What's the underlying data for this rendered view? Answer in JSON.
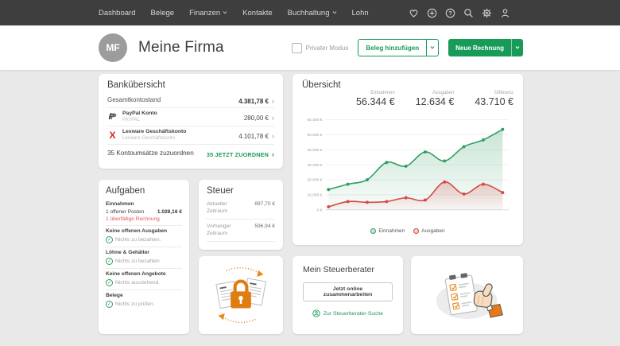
{
  "colors": {
    "accent_green": "#189b58",
    "alert_red": "#e2555c",
    "chart_green": "#2f9e62",
    "chart_red": "#d64744",
    "nav_background": "#3e3e3e"
  },
  "icons": {
    "chevron_right": "›",
    "check": "✓",
    "nav_icon_names": [
      "heart-icon",
      "plus-circle-icon",
      "help-icon",
      "search-icon",
      "settings-icon",
      "user-icon"
    ]
  },
  "nav": {
    "items": [
      {
        "label": "Dashboard",
        "has_dropdown": false
      },
      {
        "label": "Belege",
        "has_dropdown": false
      },
      {
        "label": "Finanzen",
        "has_dropdown": true
      },
      {
        "label": "Kontakte",
        "has_dropdown": false
      },
      {
        "label": "Buchhaltung",
        "has_dropdown": true
      },
      {
        "label": "Lohn",
        "has_dropdown": false
      }
    ]
  },
  "header": {
    "avatar_initials": "MF",
    "company_name": "Meine Firma",
    "private_mode_label": "Privater Modus",
    "private_mode_checked": false,
    "add_receipt_button": "Beleg hinzufügen",
    "new_invoice_button": "Neue Rechnung"
  },
  "bank_overview": {
    "title": "Bankübersicht",
    "total_label": "Gesamtkontostand",
    "total_value": "4.381,78 €",
    "accounts": [
      {
        "icon": "paypal-icon",
        "name": "PayPal Konto",
        "subtitle": "PAYPAL",
        "value": "280,00 €"
      },
      {
        "icon": "lexware-icon",
        "name": "Lexware Geschäftskonto",
        "subtitle": "Lexware Geschäftskonto",
        "value": "4.101,78 €"
      }
    ],
    "pending_label": "35 Kontoumsätze zuzuordnen",
    "pending_action": "35 JETZT ZUORDNEN"
  },
  "overview": {
    "title": "Übersicht",
    "stats": [
      {
        "label": "Einnahmen",
        "value": "56.344 €"
      },
      {
        "label": "Ausgaben",
        "value": "12.634 €"
      },
      {
        "label": "Differenz",
        "value": "43.710 €"
      }
    ]
  },
  "chart_data": {
    "type": "line",
    "x": [
      1,
      2,
      3,
      4,
      5,
      6,
      7,
      8,
      9,
      10
    ],
    "series": [
      {
        "name": "Einnahmen",
        "color": "#2f9e62",
        "values": [
          13500,
          17000,
          20000,
          31500,
          29000,
          38500,
          32500,
          42000,
          46500,
          53500
        ]
      },
      {
        "name": "Ausgaben",
        "color": "#d64744",
        "values": [
          2000,
          5500,
          5000,
          5500,
          8000,
          6500,
          18500,
          10500,
          17000,
          11500
        ]
      }
    ],
    "ylim": [
      0,
      60000
    ],
    "ytick_labels": [
      "0 €",
      "10.000 €",
      "20.000 €",
      "30.000 €",
      "40.000 €",
      "50.000 €",
      "60.000 €"
    ],
    "grid": true,
    "legend_position": "bottom",
    "area_fill": true
  },
  "tasks": {
    "title": "Aufgaben",
    "sections": [
      {
        "header": "Einnahmen",
        "open_item": {
          "text": "1 offener Posten",
          "value": "1.028,16 €"
        },
        "alert_item": "1 überfällige Rechnung"
      },
      {
        "header": "Keine offenen Ausgaben",
        "status": "Nichts zu bezahlen."
      },
      {
        "header": "Löhne & Gehälter",
        "status": "Nichts zu bezahlen"
      },
      {
        "header": "Keine offenen Angebote",
        "status": "Nichts ausstehend."
      },
      {
        "header": "Belege",
        "status": "Nichts zu prüfen."
      }
    ]
  },
  "tax": {
    "title": "Steuer",
    "rows": [
      {
        "label": "Aktueller Zeitraum",
        "value": "897,70 €"
      },
      {
        "label": "Vorheriger Zeitraum",
        "value": "596,94 €"
      }
    ]
  },
  "advisor": {
    "title": "Mein Steuerberater",
    "collaborate_button": "Jetzt online zusammenarbeiten",
    "search_link": "Zur Steuerberater-Suche"
  }
}
